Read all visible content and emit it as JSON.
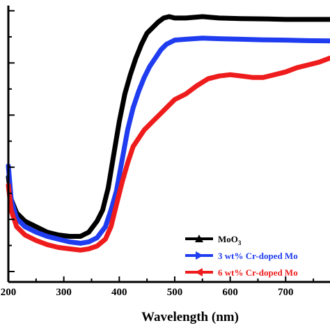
{
  "chart_data": {
    "type": "line",
    "xlabel": "Wavelength (nm)",
    "ylabel": "",
    "xlim": [
      200,
      780
    ],
    "ylim": [
      0,
      100
    ],
    "x_ticks": [
      200,
      300,
      400,
      500,
      600,
      700
    ],
    "x_tick_labels": [
      "200",
      "300",
      "400",
      "500",
      "600",
      "700"
    ],
    "y_tick_count": 6,
    "grid": false,
    "legend_position": "bottom-right",
    "series": [
      {
        "name_parts": [
          "MoO",
          "3"
        ],
        "color": "#000000",
        "marker": "triangle-up",
        "x": [
          200,
          205,
          215,
          230,
          250,
          270,
          290,
          310,
          330,
          345,
          360,
          370,
          380,
          390,
          400,
          410,
          420,
          430,
          440,
          450,
          460,
          470,
          480,
          490,
          500,
          520,
          550,
          580,
          620,
          660,
          700,
          740,
          780
        ],
        "y": [
          38,
          30,
          25,
          22,
          20,
          18,
          17,
          16.5,
          16.5,
          18,
          22,
          26,
          34,
          46,
          58,
          68,
          75,
          81,
          86,
          90,
          92,
          94,
          95.5,
          96,
          95.5,
          95.5,
          96,
          95.5,
          95.3,
          95.2,
          95,
          95,
          95
        ]
      },
      {
        "name_parts": [
          "3 wt% Cr-doped Mo"
        ],
        "color": "#1f3cf0",
        "marker": "triangle-right",
        "x": [
          200,
          205,
          215,
          230,
          250,
          270,
          290,
          310,
          330,
          345,
          360,
          375,
          385,
          395,
          405,
          415,
          425,
          435,
          445,
          455,
          465,
          475,
          485,
          500,
          520,
          550,
          580,
          620,
          660,
          700,
          740,
          780
        ],
        "y": [
          42,
          30,
          23,
          20,
          18,
          16.5,
          15.5,
          14.5,
          14,
          14.5,
          16,
          20,
          26,
          33,
          44,
          55,
          63,
          69,
          74,
          78,
          81,
          84,
          86,
          87.5,
          87.8,
          88.2,
          88,
          87.8,
          87.6,
          87.5,
          87.3,
          87.2
        ]
      },
      {
        "name_parts": [
          "6 wt% Cr-doped Mo"
        ],
        "color": "#ee1c1c",
        "marker": "triangle-left",
        "x": [
          200,
          205,
          215,
          230,
          250,
          270,
          290,
          310,
          330,
          345,
          360,
          375,
          385,
          395,
          405,
          415,
          425,
          435,
          445,
          460,
          475,
          490,
          500,
          520,
          540,
          560,
          580,
          600,
          620,
          640,
          660,
          680,
          700,
          720,
          740,
          760,
          780
        ],
        "y": [
          35,
          26,
          20,
          17,
          15,
          13.5,
          12.5,
          12,
          11.5,
          12,
          13,
          15.5,
          20,
          28,
          36,
          43,
          49,
          52,
          55,
          58,
          61,
          64,
          66,
          68,
          71,
          73.5,
          74.5,
          75,
          74.5,
          74,
          74,
          75,
          76,
          77.5,
          78.5,
          79.5,
          81
        ]
      }
    ]
  }
}
